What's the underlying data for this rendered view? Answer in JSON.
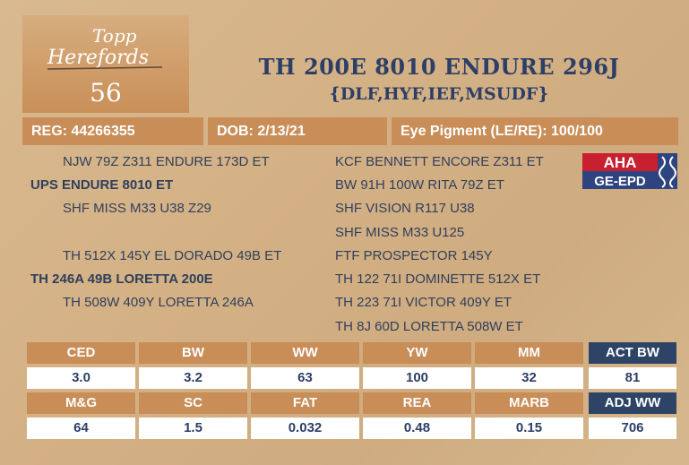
{
  "logo": {
    "line1": "Topp",
    "line2": "Herefords"
  },
  "lot_number": "56",
  "animal_name": "TH 200E 8010 ENDURE 296J",
  "designations": "{DLF,HYF,IEF,MSUDF}",
  "info": {
    "reg": "REG: 44266355",
    "dob": "DOB: 2/13/21",
    "eye": "Eye Pigment (LE/RE): 100/100"
  },
  "pedigree_left": [
    "NJW 79Z Z311 ENDURE 173D ET",
    "UPS ENDURE 8010 ET",
    "SHF MISS M33 U38 Z29",
    "TH 512X 145Y EL DORADO 49B ET",
    "TH 246A 49B LORETTA 200E",
    "TH 508W 409Y LORETTA 246A"
  ],
  "pedigree_right": [
    "KCF BENNETT ENCORE Z311 ET",
    "BW 91H 100W RITA 79Z ET",
    "SHF VISION R117 U38",
    "SHF MISS M33 U125",
    "FTF PROSPECTOR 145Y",
    "TH 122 71I DOMINETTE 512X ET",
    "TH 223 71I VICTOR 409Y ET",
    "TH 8J 60D LORETTA 508W ET"
  ],
  "aha_badge": {
    "top": "AHA",
    "bottom": "GE-EPD"
  },
  "epd_row1": {
    "labels": [
      "CED",
      "BW",
      "WW",
      "YW",
      "MM"
    ],
    "values": [
      "3.0",
      "3.2",
      "63",
      "100",
      "32"
    ]
  },
  "epd_row2": {
    "labels": [
      "M&G",
      "SC",
      "FAT",
      "REA",
      "MARB"
    ],
    "values": [
      "64",
      "1.5",
      "0.032",
      "0.48",
      "0.15"
    ]
  },
  "actuals": {
    "act_bw_label": "ACT BW",
    "act_bw_value": "81",
    "adj_ww_label": "ADJ WW",
    "adj_ww_value": "706"
  },
  "colors": {
    "header_bg": "#c98d58",
    "navy": "#2e4466",
    "text": "#2d3f66",
    "aha_red": "#c8202f"
  }
}
